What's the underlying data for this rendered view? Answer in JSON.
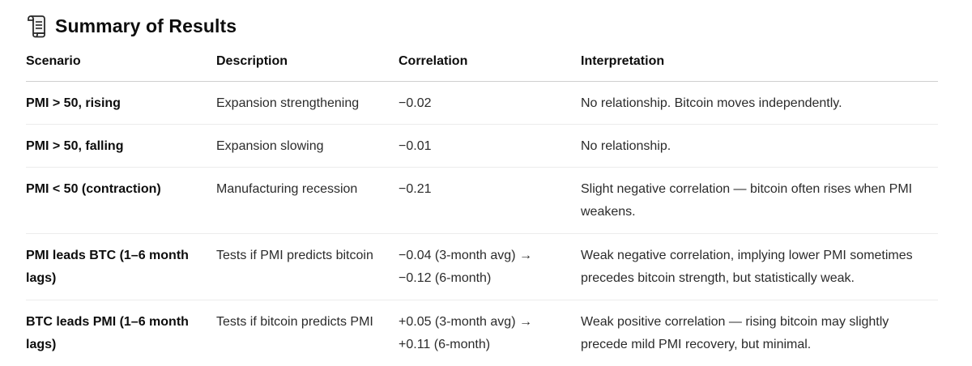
{
  "heading": {
    "icon": "scroll-icon",
    "title": "Summary of Results"
  },
  "table": {
    "columns": [
      "Scenario",
      "Description",
      "Correlation",
      "Interpretation"
    ],
    "rows": [
      {
        "scenario": "PMI > 50, rising",
        "description": "Expansion strengthening",
        "correlation": "−0.02",
        "interpretation": "No relationship. Bitcoin moves independently."
      },
      {
        "scenario": "PMI > 50, falling",
        "description": "Expansion slowing",
        "correlation": "−0.01",
        "interpretation": "No relationship."
      },
      {
        "scenario": "PMI < 50 (contraction)",
        "description": "Manufacturing recession",
        "correlation": "−0.21",
        "interpretation": "Slight negative correlation — bitcoin often rises when PMI weakens."
      },
      {
        "scenario": "PMI leads BTC (1–6 month lags)",
        "description": "Tests if PMI predicts bitcoin",
        "correlation": "−0.04 (3-month avg) → −0.12 (6-month)",
        "interpretation": "Weak negative correlation, implying lower PMI sometimes precedes bitcoin strength, but statistically weak."
      },
      {
        "scenario": "BTC leads PMI (1–6 month lags)",
        "description": "Tests if bitcoin predicts PMI",
        "correlation": "+0.05 (3-month avg) → +0.11 (6-month)",
        "interpretation": "Weak positive correlation — rising bitcoin may slightly precede mild PMI recovery, but minimal."
      }
    ]
  }
}
